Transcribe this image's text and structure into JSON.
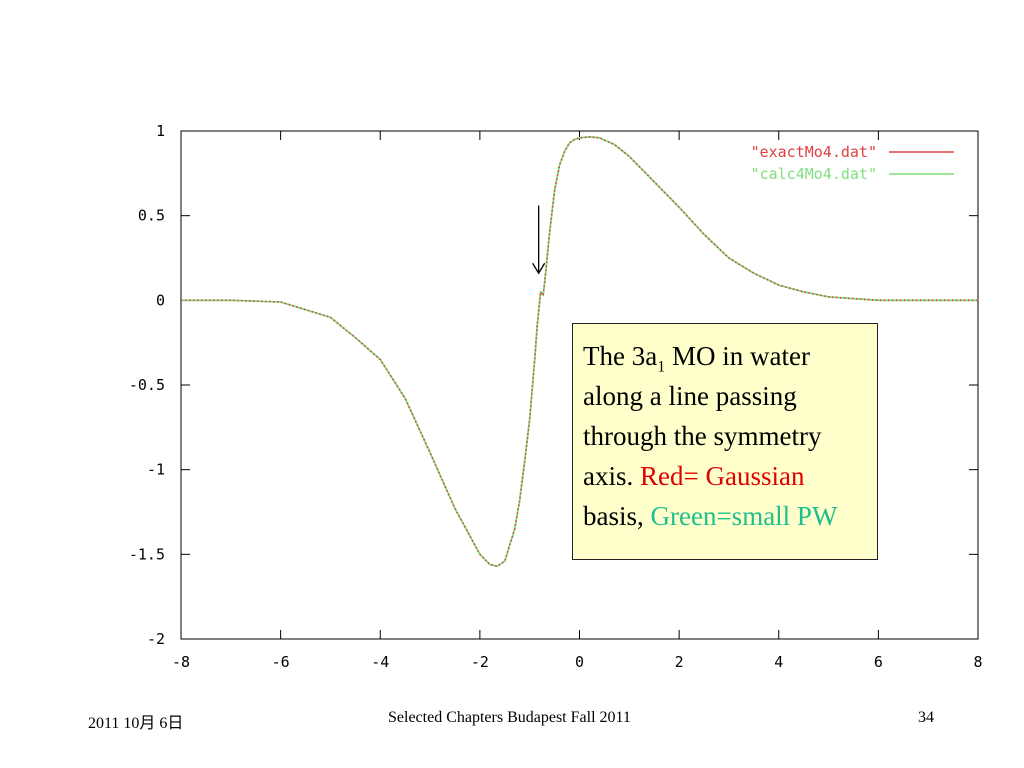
{
  "chart_data": {
    "type": "line",
    "xlim": [
      -8,
      8
    ],
    "ylim": [
      -2,
      1
    ],
    "x_ticks": [
      "-8",
      "-6",
      "-4",
      "-2",
      "0",
      "2",
      "4",
      "6",
      "8"
    ],
    "y_ticks": [
      "1",
      "0.5",
      "0",
      "-0.5",
      "-1",
      "-1.5",
      "-2"
    ],
    "grid": false,
    "legend_position": "top-right",
    "series": [
      {
        "name": "\"exactMo4.dat\"",
        "color": "#e04040",
        "style": "dotted",
        "x": [
          -8,
          -7,
          -6,
          -5,
          -4.5,
          -4,
          -3.5,
          -3,
          -2.5,
          -2,
          -1.8,
          -1.65,
          -1.5,
          -1.3,
          -1.2,
          -1.1,
          -1.0,
          -0.9,
          -0.85,
          -0.78,
          -0.73,
          -0.7,
          -0.6,
          -0.5,
          -0.4,
          -0.3,
          -0.2,
          -0.1,
          0,
          0.2,
          0.4,
          0.7,
          1.0,
          1.5,
          2.0,
          2.5,
          3.0,
          3.5,
          4.0,
          4.5,
          5.0,
          5.5,
          6.0,
          6.5,
          7.0,
          7.5,
          8.0
        ],
        "y": [
          0,
          0,
          -0.01,
          -0.1,
          -0.22,
          -0.35,
          -0.58,
          -0.9,
          -1.23,
          -1.5,
          -1.56,
          -1.57,
          -1.54,
          -1.35,
          -1.18,
          -0.95,
          -0.7,
          -0.35,
          -0.15,
          0.05,
          0.03,
          0.1,
          0.4,
          0.65,
          0.8,
          0.88,
          0.93,
          0.95,
          0.96,
          0.965,
          0.96,
          0.92,
          0.85,
          0.7,
          0.55,
          0.39,
          0.25,
          0.16,
          0.09,
          0.05,
          0.02,
          0.01,
          0,
          0,
          0,
          0,
          0
        ]
      },
      {
        "name": "\"calc4Mo4.dat\"",
        "color": "#7fe07f",
        "style": "solid",
        "x": [
          -8,
          -7,
          -6,
          -5,
          -4.5,
          -4,
          -3.5,
          -3,
          -2.5,
          -2,
          -1.8,
          -1.65,
          -1.5,
          -1.3,
          -1.2,
          -1.1,
          -1.0,
          -0.9,
          -0.85,
          -0.78,
          -0.73,
          -0.7,
          -0.6,
          -0.5,
          -0.4,
          -0.3,
          -0.2,
          -0.1,
          0,
          0.2,
          0.4,
          0.7,
          1.0,
          1.5,
          2.0,
          2.5,
          3.0,
          3.5,
          4.0,
          4.5,
          5.0,
          5.5,
          6.0,
          6.5,
          7.0,
          7.5,
          8.0
        ],
        "y": [
          0,
          0,
          -0.01,
          -0.1,
          -0.22,
          -0.35,
          -0.58,
          -0.9,
          -1.23,
          -1.5,
          -1.56,
          -1.57,
          -1.54,
          -1.35,
          -1.18,
          -0.95,
          -0.7,
          -0.35,
          -0.15,
          0.05,
          0.03,
          0.1,
          0.4,
          0.65,
          0.8,
          0.88,
          0.93,
          0.95,
          0.96,
          0.965,
          0.96,
          0.92,
          0.85,
          0.7,
          0.55,
          0.39,
          0.25,
          0.16,
          0.09,
          0.05,
          0.02,
          0.01,
          0,
          0,
          0,
          0,
          0
        ]
      }
    ],
    "annotation_arrow": {
      "x": -0.82,
      "y_from": 0.56,
      "y_to": 0.16
    }
  },
  "callout": {
    "line1_pre": "The 3a",
    "line1_sub": "1",
    "line1_post": " MO in water along a line passing through the symmetry axis.",
    "red_label": "Red= Gaussian",
    "basis_text": " basis, ",
    "green_label": "Green=small PW",
    "colors": {
      "red": "#e00000",
      "green": "#1ebf8e",
      "background": "#ffffcc"
    }
  },
  "footer": {
    "date": "2011   10月   6日",
    "title": "Selected Chapters Budapest Fall 2011",
    "page": "34"
  }
}
